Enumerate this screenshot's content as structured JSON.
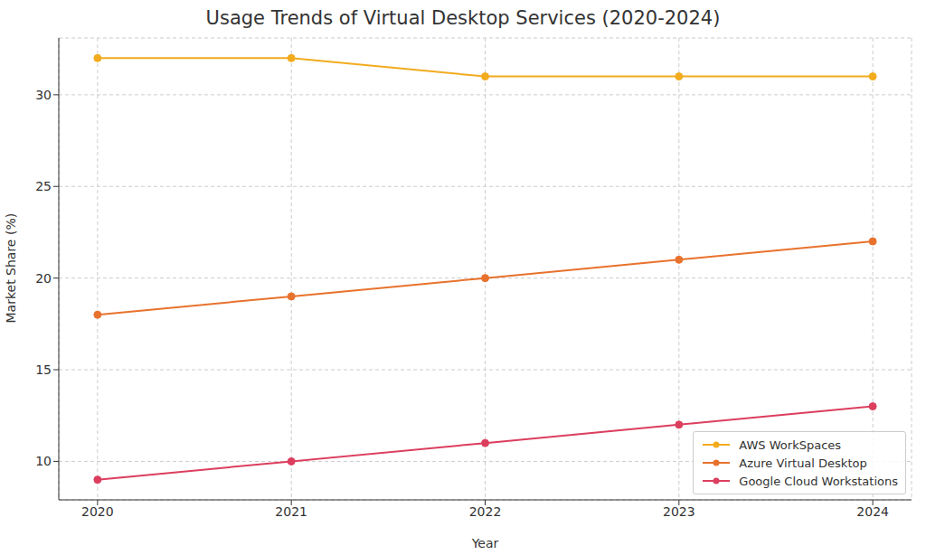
{
  "chart_data": {
    "type": "line",
    "title": "Usage Trends of Virtual Desktop Services (2020-2024)",
    "x_label": "Year",
    "y_label": "Market Share (%)",
    "x": [
      2020,
      2021,
      2022,
      2023,
      2024
    ],
    "series": [
      {
        "name": "AWS WorkSpaces",
        "color": "#f2ab1e",
        "values": [
          32,
          32,
          31,
          31,
          31
        ]
      },
      {
        "name": "Azure Virtual Desktop",
        "color": "#e8722d",
        "values": [
          18,
          19,
          20,
          21,
          22
        ]
      },
      {
        "name": "Google Cloud Workstations",
        "color": "#dc3e5e",
        "values": [
          9,
          10,
          11,
          12,
          13
        ]
      }
    ],
    "xlim": [
      2019.8,
      2024.2
    ],
    "xticks": [
      2020,
      2021,
      2022,
      2023,
      2024
    ],
    "ylim": [
      7.9,
      33.1
    ],
    "yticks": [
      10,
      15,
      20,
      25,
      30
    ],
    "grid": true,
    "legend": "lower right",
    "marker": "o",
    "line_style": "solid"
  }
}
